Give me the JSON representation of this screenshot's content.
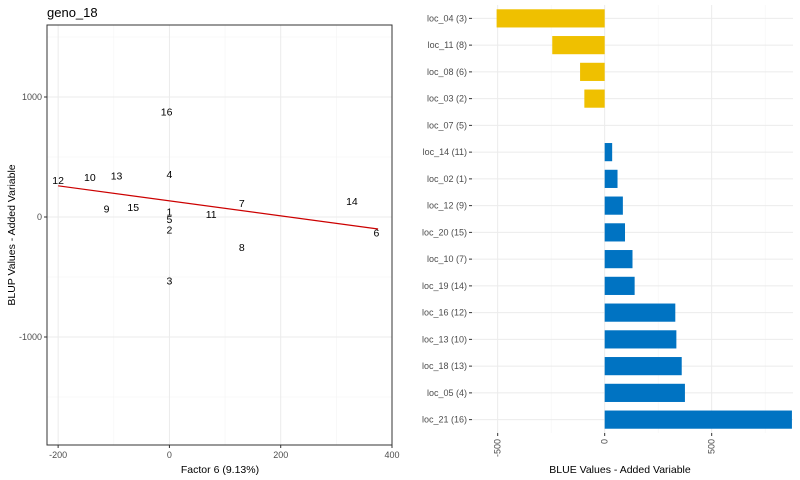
{
  "colors": {
    "regression_line": "#cc0000",
    "bar_positive": "#0073c2",
    "bar_negative": "#efc000",
    "grid": "#ebebeb",
    "panel_border": "#333333"
  },
  "chart_data": [
    {
      "type": "scatter",
      "title": "geno_18",
      "xlabel": "Factor 6 (9.13%)",
      "ylabel": "BLUP Values - Added Variable",
      "xlim": [
        -220,
        400
      ],
      "ylim": [
        -1900,
        1600
      ],
      "x_ticks": [
        -200,
        0,
        200,
        400
      ],
      "x_tick_labels": [
        "-200",
        "0",
        "200",
        "400"
      ],
      "y_ticks": [
        -1000,
        0,
        1000
      ],
      "y_tick_labels": [
        "-1000",
        "0",
        "1000"
      ],
      "grid": true,
      "points": [
        {
          "label": "16",
          "x": -5,
          "y": 880
        },
        {
          "label": "4",
          "x": 0,
          "y": 360
        },
        {
          "label": "12",
          "x": -200,
          "y": 310
        },
        {
          "label": "10",
          "x": -143,
          "y": 335
        },
        {
          "label": "13",
          "x": -95,
          "y": 345
        },
        {
          "label": "7",
          "x": 130,
          "y": 115
        },
        {
          "label": "14",
          "x": 328,
          "y": 135
        },
        {
          "label": "9",
          "x": -113,
          "y": 70
        },
        {
          "label": "15",
          "x": -65,
          "y": 85
        },
        {
          "label": "1",
          "x": 0,
          "y": 45
        },
        {
          "label": "11",
          "x": 75,
          "y": 25
        },
        {
          "label": "5",
          "x": 0,
          "y": -15
        },
        {
          "label": "2",
          "x": 0,
          "y": -105
        },
        {
          "label": "6",
          "x": 372,
          "y": -130
        },
        {
          "label": "8",
          "x": 130,
          "y": -250
        },
        {
          "label": "3",
          "x": 0,
          "y": -530
        }
      ],
      "regression_line": {
        "x": [
          -200,
          375
        ],
        "y": [
          260,
          -100
        ]
      }
    },
    {
      "type": "bar",
      "orientation": "horizontal",
      "xlabel": "BLUE Values - Added Variable",
      "ylabel": "",
      "xlim": [
        -620,
        880
      ],
      "x_ticks": [
        -500,
        0,
        500
      ],
      "x_tick_labels": [
        "-500",
        "0",
        "500"
      ],
      "grid": true,
      "categories": [
        "loc_04 (3)",
        "loc_11 (8)",
        "loc_08 (6)",
        "loc_03 (2)",
        "loc_07 (5)",
        "loc_14 (11)",
        "loc_02 (1)",
        "loc_12 (9)",
        "loc_20 (15)",
        "loc_10 (7)",
        "loc_19 (14)",
        "loc_16 (12)",
        "loc_13 (10)",
        "loc_18 (13)",
        "loc_05 (4)",
        "loc_21 (16)"
      ],
      "values": [
        -505,
        -245,
        -115,
        -95,
        0,
        35,
        60,
        85,
        95,
        130,
        140,
        330,
        335,
        360,
        375,
        875
      ]
    }
  ]
}
